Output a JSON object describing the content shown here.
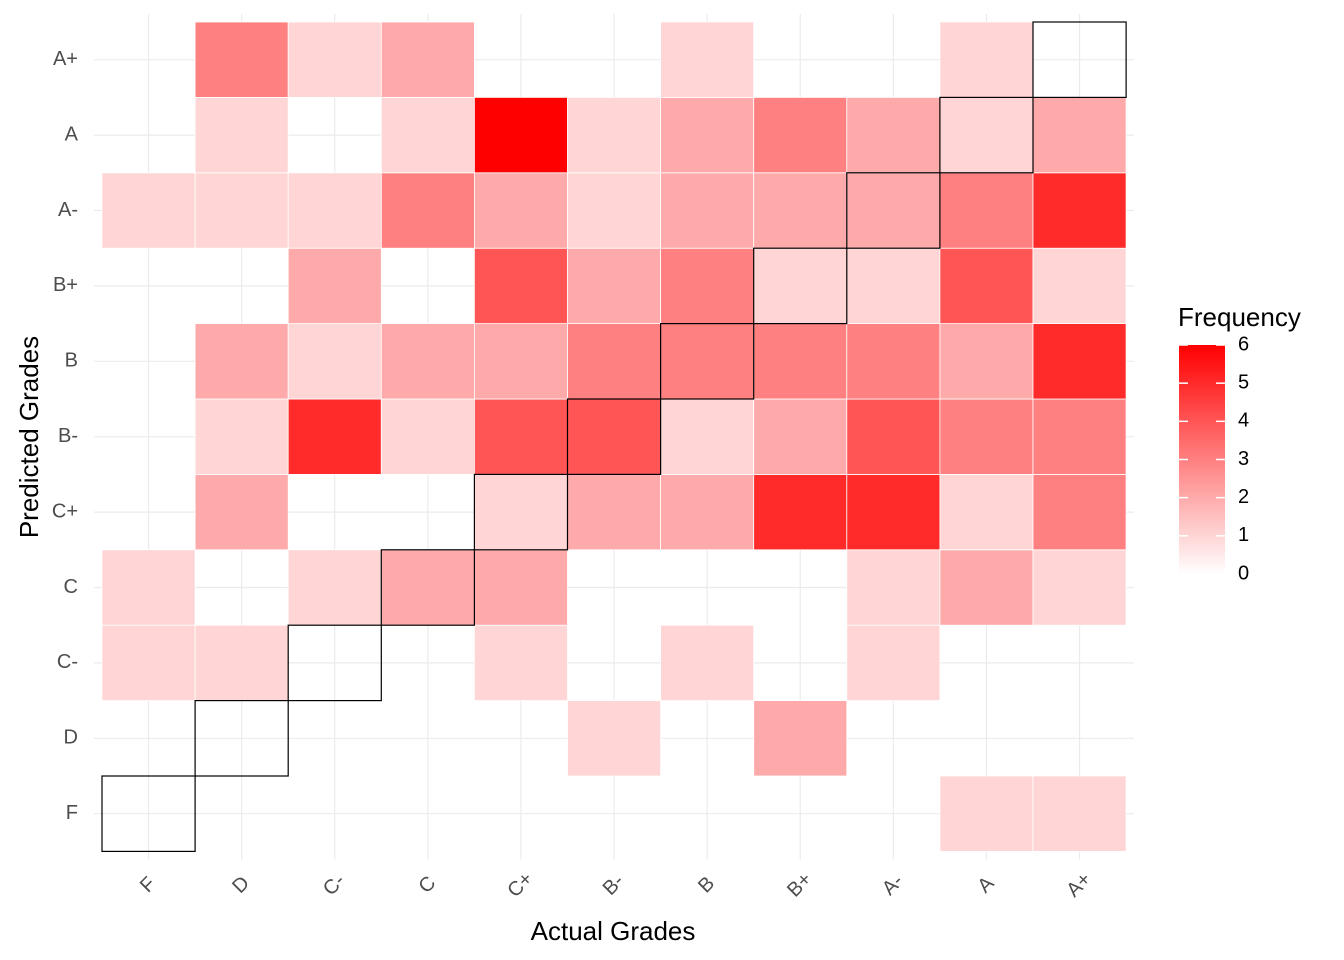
{
  "chart_data": {
    "type": "heatmap",
    "title": "",
    "xlabel": "Actual Grades",
    "ylabel": "Predicted Grades",
    "x_categories": [
      "F",
      "D",
      "C-",
      "C",
      "C+",
      "B-",
      "B",
      "B+",
      "A-",
      "A",
      "A+"
    ],
    "y_categories": [
      "F",
      "D",
      "C-",
      "C",
      "C+",
      "B-",
      "B",
      "B+",
      "A-",
      "A",
      "A+"
    ],
    "matrix_rows_predicted_F_to_Aplus": [
      [
        0,
        0,
        0,
        0,
        0,
        0,
        0,
        0,
        0,
        1,
        1
      ],
      [
        0,
        0,
        0,
        0,
        0,
        1,
        0,
        2,
        0,
        0,
        0
      ],
      [
        1,
        1,
        0,
        0,
        1,
        0,
        1,
        0,
        1,
        0,
        0
      ],
      [
        1,
        0,
        1,
        2,
        2,
        0,
        0,
        0,
        1,
        2,
        1
      ],
      [
        0,
        2,
        0,
        0,
        1,
        2,
        2,
        5,
        5,
        1,
        3
      ],
      [
        0,
        1,
        5,
        1,
        4,
        4,
        1,
        2,
        4,
        3,
        3
      ],
      [
        0,
        2,
        1,
        2,
        2,
        3,
        3,
        3,
        3,
        2,
        5
      ],
      [
        0,
        0,
        2,
        0,
        4,
        2,
        3,
        1,
        1,
        4,
        1
      ],
      [
        1,
        1,
        1,
        3,
        2,
        1,
        2,
        2,
        2,
        3,
        5
      ],
      [
        0,
        1,
        0,
        1,
        6,
        1,
        2,
        3,
        2,
        1,
        2
      ],
      [
        0,
        3,
        1,
        2,
        0,
        0,
        1,
        0,
        0,
        1,
        0
      ]
    ],
    "highlight": "diagonal (actual = predicted) outlined in black",
    "grid": true,
    "colors": {
      "low": "#ffffff",
      "high": "#ff0000",
      "diagonal_outline": "#000000"
    },
    "legend": {
      "title": "Frequency",
      "position": "right",
      "ticks": [
        "0",
        "1",
        "2",
        "3",
        "4",
        "5",
        "6"
      ],
      "range": [
        0,
        6
      ]
    }
  }
}
